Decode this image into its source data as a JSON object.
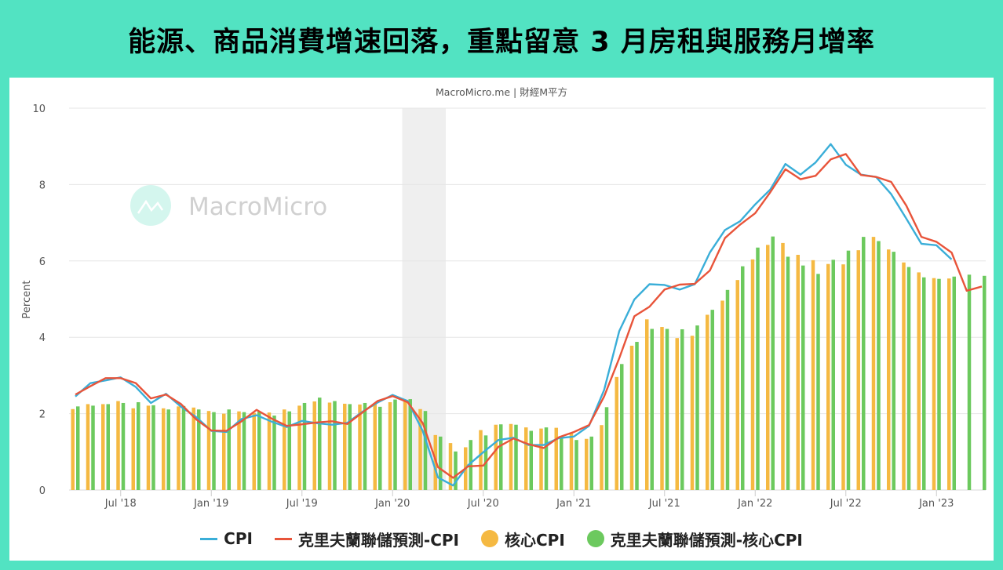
{
  "title": "能源、商品消費增速回落，重點留意 3 月房租與服務月增率",
  "source_label": "MacroMicro.me | 財經M平方",
  "watermark": "MacroMicro",
  "colors": {
    "background": "#52e3c2",
    "cpi": "#3aaed8",
    "cleveland_cpi": "#e8543a",
    "core_cpi": "#f5b942",
    "cleveland_core_cpi": "#6cc95e",
    "recession_shade": "#efefef",
    "grid": "#e6e6e6"
  },
  "legend": [
    {
      "label": "CPI",
      "type": "line",
      "color_key": "cpi"
    },
    {
      "label": "克里夫蘭聯儲預測-CPI",
      "type": "line",
      "color_key": "cleveland_cpi"
    },
    {
      "label": "核心CPI",
      "type": "dot",
      "color_key": "core_cpi"
    },
    {
      "label": "克里夫蘭聯儲預測-核心CPI",
      "type": "dot",
      "color_key": "cleveland_core_cpi"
    }
  ],
  "chart_data": {
    "type": "bar+line",
    "title": "能源、商品消費增速回落，重點留意 3 月房租與服務月增率",
    "subtitle": "MacroMicro.me | 財經M平方",
    "xlabel": "",
    "ylabel": "Percent",
    "ylim": [
      0,
      10
    ],
    "yticks": [
      0,
      2,
      4,
      6,
      8,
      10
    ],
    "grid": true,
    "legend_position": "bottom",
    "x_tick_labels": [
      "Jul '18",
      "Jan '19",
      "Jul '19",
      "Jan '20",
      "Jul '20",
      "Jan '21",
      "Jul '21",
      "Jan '22",
      "Jul '22",
      "Jan '23"
    ],
    "x_tick_index": [
      3,
      9,
      15,
      21,
      27,
      33,
      39,
      45,
      51,
      57
    ],
    "recession_band": {
      "start": "2020-02",
      "end": "2020-04",
      "start_index": 22,
      "end_index": 24
    },
    "x_start": "2018-04",
    "x_end": "2023-04",
    "series": [
      {
        "name": "CPI",
        "type": "line",
        "values": [
          2.45,
          2.8,
          2.87,
          2.95,
          2.7,
          2.28,
          2.52,
          2.18,
          1.91,
          1.55,
          1.52,
          1.86,
          1.96,
          1.79,
          1.65,
          1.81,
          1.75,
          1.71,
          1.76,
          2.05,
          2.29,
          2.49,
          2.33,
          1.54,
          0.33,
          0.12,
          0.65,
          0.99,
          1.31,
          1.37,
          1.18,
          1.18,
          1.36,
          1.4,
          1.68,
          2.62,
          4.16,
          4.99,
          5.39,
          5.37,
          5.25,
          5.39,
          6.22,
          6.81,
          7.04,
          7.48,
          7.87,
          8.54,
          8.26,
          8.58,
          9.06,
          8.52,
          8.26,
          8.2,
          7.75,
          7.11,
          6.45,
          6.41,
          6.04,
          null,
          null
        ]
      },
      {
        "name": "克里夫蘭聯儲預測-CPI",
        "type": "line",
        "values": [
          2.5,
          2.72,
          2.93,
          2.93,
          2.8,
          2.4,
          2.5,
          2.25,
          1.85,
          1.56,
          1.55,
          1.8,
          2.1,
          1.87,
          1.68,
          1.72,
          1.77,
          1.8,
          1.73,
          2.03,
          2.33,
          2.46,
          2.3,
          1.75,
          0.6,
          0.32,
          0.62,
          0.64,
          1.13,
          1.35,
          1.2,
          1.1,
          1.38,
          1.52,
          1.7,
          2.45,
          3.45,
          4.55,
          4.8,
          5.25,
          5.38,
          5.4,
          5.75,
          6.6,
          6.95,
          7.25,
          7.8,
          8.4,
          8.14,
          8.23,
          8.66,
          8.8,
          8.25,
          8.2,
          8.07,
          7.45,
          6.63,
          6.5,
          6.22,
          5.22,
          5.33
        ]
      },
      {
        "name": "核心CPI",
        "type": "bar",
        "values": [
          2.12,
          2.25,
          2.25,
          2.33,
          2.14,
          2.21,
          2.14,
          2.19,
          2.16,
          2.07,
          2.0,
          2.06,
          2.02,
          2.03,
          2.11,
          2.21,
          2.32,
          2.29,
          2.26,
          2.24,
          2.26,
          2.3,
          2.34,
          2.12,
          1.44,
          1.23,
          1.12,
          1.57,
          1.71,
          1.73,
          1.64,
          1.61,
          1.63,
          1.49,
          1.34,
          1.7,
          2.96,
          3.78,
          4.47,
          4.27,
          3.98,
          4.04,
          4.59,
          4.96,
          5.5,
          6.04,
          6.42,
          6.47,
          6.16,
          6.02,
          5.92,
          5.91,
          6.28,
          6.63,
          6.3,
          5.96,
          5.7,
          5.55,
          5.54,
          null,
          null
        ]
      },
      {
        "name": "克里夫蘭聯儲預測-核心CPI",
        "type": "bar",
        "values": [
          2.19,
          2.21,
          2.25,
          2.28,
          2.3,
          2.22,
          2.11,
          2.2,
          2.11,
          2.04,
          2.11,
          2.04,
          2.06,
          1.95,
          2.06,
          2.28,
          2.42,
          2.33,
          2.25,
          2.28,
          2.18,
          2.37,
          2.38,
          2.07,
          1.4,
          1.01,
          1.31,
          1.43,
          1.72,
          1.71,
          1.55,
          1.64,
          1.38,
          1.31,
          1.4,
          2.17,
          3.3,
          3.88,
          4.22,
          4.22,
          4.21,
          4.31,
          4.72,
          5.24,
          5.86,
          6.35,
          6.64,
          6.11,
          5.88,
          5.66,
          6.03,
          6.27,
          6.63,
          6.52,
          6.24,
          5.84,
          5.57,
          5.53,
          5.59,
          5.64,
          5.61
        ]
      }
    ]
  }
}
